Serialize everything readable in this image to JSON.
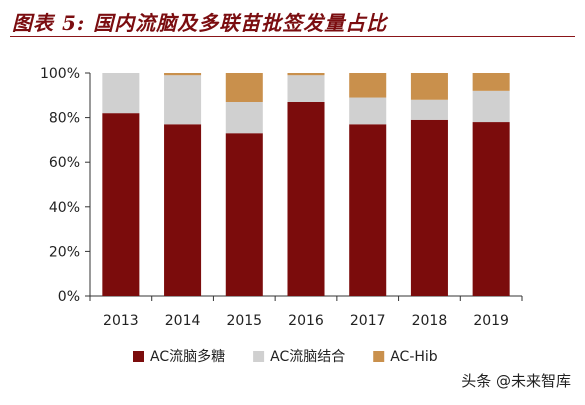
{
  "figure": {
    "title": "图表 5: 国内流脑及多联苗批签发量占比"
  },
  "watermark": "头条 @未来智库",
  "colors": {
    "title": "#7b0d10",
    "rule": "#8a1519"
  },
  "chart_data": {
    "type": "bar",
    "stacked": true,
    "categories": [
      "2013",
      "2014",
      "2015",
      "2016",
      "2017",
      "2018",
      "2019"
    ],
    "series": [
      {
        "name": "AC流脑多糖",
        "color": "#7b0c0c",
        "values": [
          82,
          77,
          73,
          87,
          77,
          79,
          78
        ]
      },
      {
        "name": "AC流脑结合",
        "color": "#d0d0d0",
        "values": [
          18,
          22,
          14,
          12,
          12,
          9,
          14
        ]
      },
      {
        "name": "AC-Hib",
        "color": "#c9904c",
        "values": [
          0,
          1,
          13,
          1,
          11,
          12,
          8
        ]
      }
    ],
    "ylim": [
      0,
      100
    ],
    "yticks": [
      "0%",
      "20%",
      "40%",
      "60%",
      "80%",
      "100%"
    ],
    "grid": false,
    "legend": "bottom"
  }
}
